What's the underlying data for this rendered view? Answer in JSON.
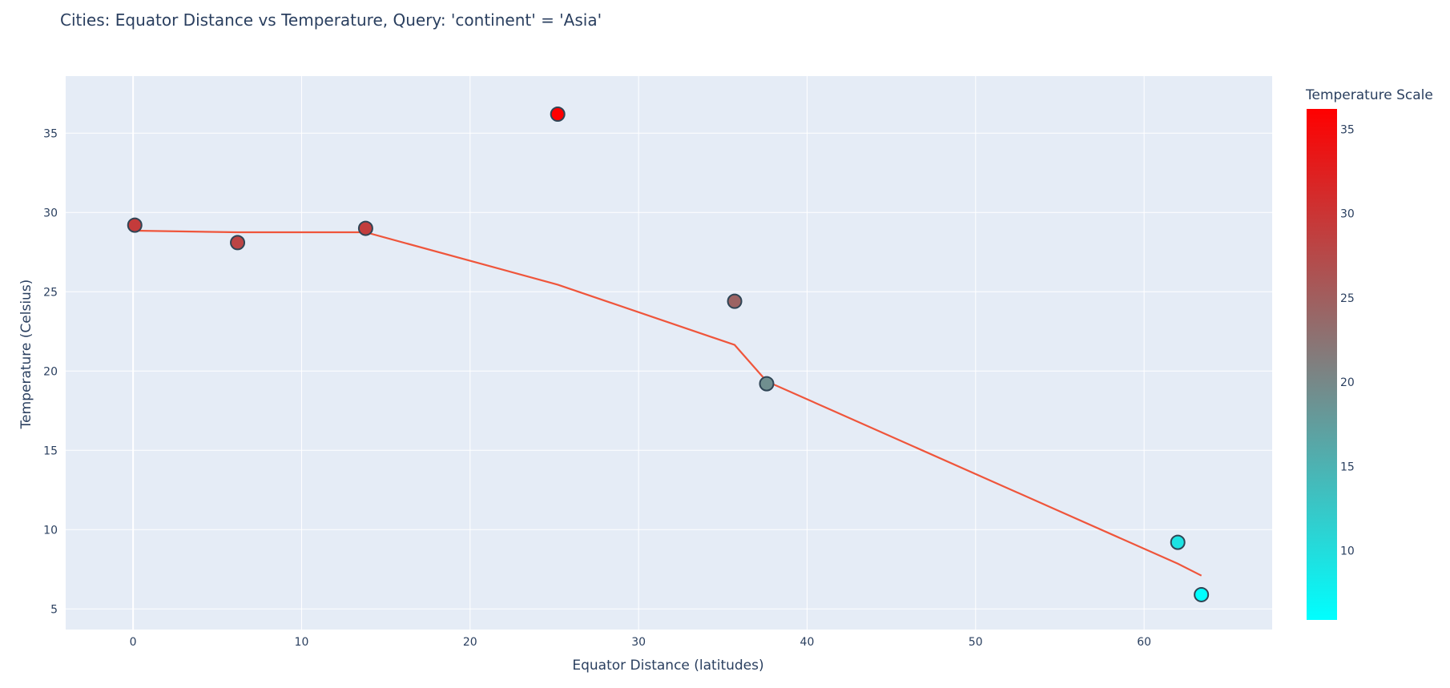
{
  "chart_data": {
    "type": "scatter",
    "title": "Cities: Equator Distance vs Temperature, Query: 'continent' = 'Asia'",
    "xlabel": "Equator Distance (latitudes)",
    "ylabel": "Temperature (Celsius)",
    "xlim": [
      -4,
      67.6
    ],
    "ylim": [
      3.7,
      38.6
    ],
    "xticks": [
      0,
      10,
      20,
      30,
      40,
      50,
      60
    ],
    "yticks": [
      5,
      10,
      15,
      20,
      25,
      30,
      35
    ],
    "grid": true,
    "points": [
      {
        "x": 0.1,
        "y": 29.2
      },
      {
        "x": 6.2,
        "y": 28.1
      },
      {
        "x": 13.8,
        "y": 29.0
      },
      {
        "x": 25.2,
        "y": 36.2
      },
      {
        "x": 35.7,
        "y": 24.4
      },
      {
        "x": 37.6,
        "y": 19.2
      },
      {
        "x": 62.0,
        "y": 9.2
      },
      {
        "x": 63.4,
        "y": 5.9
      }
    ],
    "trendline": {
      "color": "#ef553b",
      "points": [
        {
          "x": 0.1,
          "y": 28.85
        },
        {
          "x": 6.2,
          "y": 28.75
        },
        {
          "x": 13.8,
          "y": 28.75
        },
        {
          "x": 25.2,
          "y": 25.45
        },
        {
          "x": 35.7,
          "y": 21.65
        },
        {
          "x": 37.6,
          "y": 19.35
        },
        {
          "x": 62.0,
          "y": 7.85
        },
        {
          "x": 63.4,
          "y": 7.1
        }
      ]
    },
    "colorbar": {
      "title": "Temperature Scale",
      "range": [
        5.9,
        36.2
      ],
      "ticks": [
        10,
        15,
        20,
        25,
        30,
        35
      ],
      "color_low": "#00ffff",
      "color_high": "#ff0000"
    },
    "colors": {
      "plot_bg": "#e5ecf6",
      "grid": "#ffffff",
      "marker_outline": "#2f4555"
    }
  }
}
